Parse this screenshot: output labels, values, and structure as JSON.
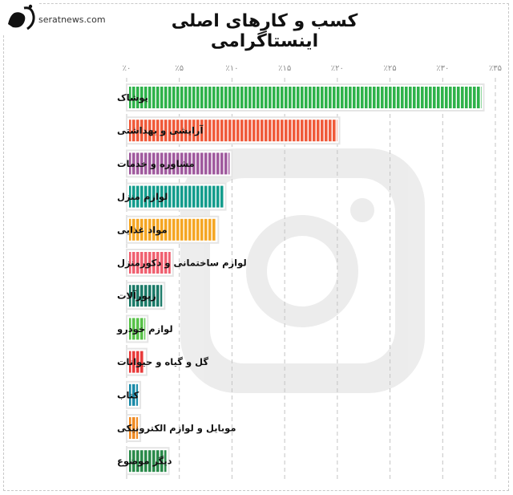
{
  "header": {
    "site_url": "seratnews.com"
  },
  "chart_data": {
    "type": "bar",
    "orientation": "horizontal",
    "title": "کسب و کارهای اصلی اینستاگرامی",
    "xlim": [
      0,
      35
    ],
    "ticks": [
      0,
      5,
      10,
      15,
      20,
      25,
      30,
      35
    ],
    "tick_labels": [
      "٪۰",
      "٪۵",
      "٪۱۰",
      "٪۱۵",
      "٪۲۰",
      "٪۲۵",
      "٪۳۰",
      "٪۳۵"
    ],
    "grid": true,
    "categories": [
      "پوشاک",
      "آرایشی و بهداشتی",
      "مشاوره و خدمات",
      "لوازم منزل",
      "مواد غذایی",
      "لوازم ساختمانی و دکورمنزل",
      "زیورآلات",
      "لوازم خودرو",
      "گل و گیاه و حیوانات",
      "کتاب",
      "موبایل و لوازم الکترونیکی",
      "دیگر موضوع"
    ],
    "values": [
      33.9,
      20.2,
      10.0,
      9.4,
      8.7,
      4.4,
      3.6,
      2.0,
      1.9,
      1.3,
      1.3,
      4.0
    ],
    "colors": [
      "#2eb24a",
      "#f05a3a",
      "#a05a9e",
      "#139c8c",
      "#f5a623",
      "#f06070",
      "#1b7a68",
      "#58c248",
      "#e83a3a",
      "#1a8aa8",
      "#f08a22",
      "#2a8a4a"
    ]
  }
}
